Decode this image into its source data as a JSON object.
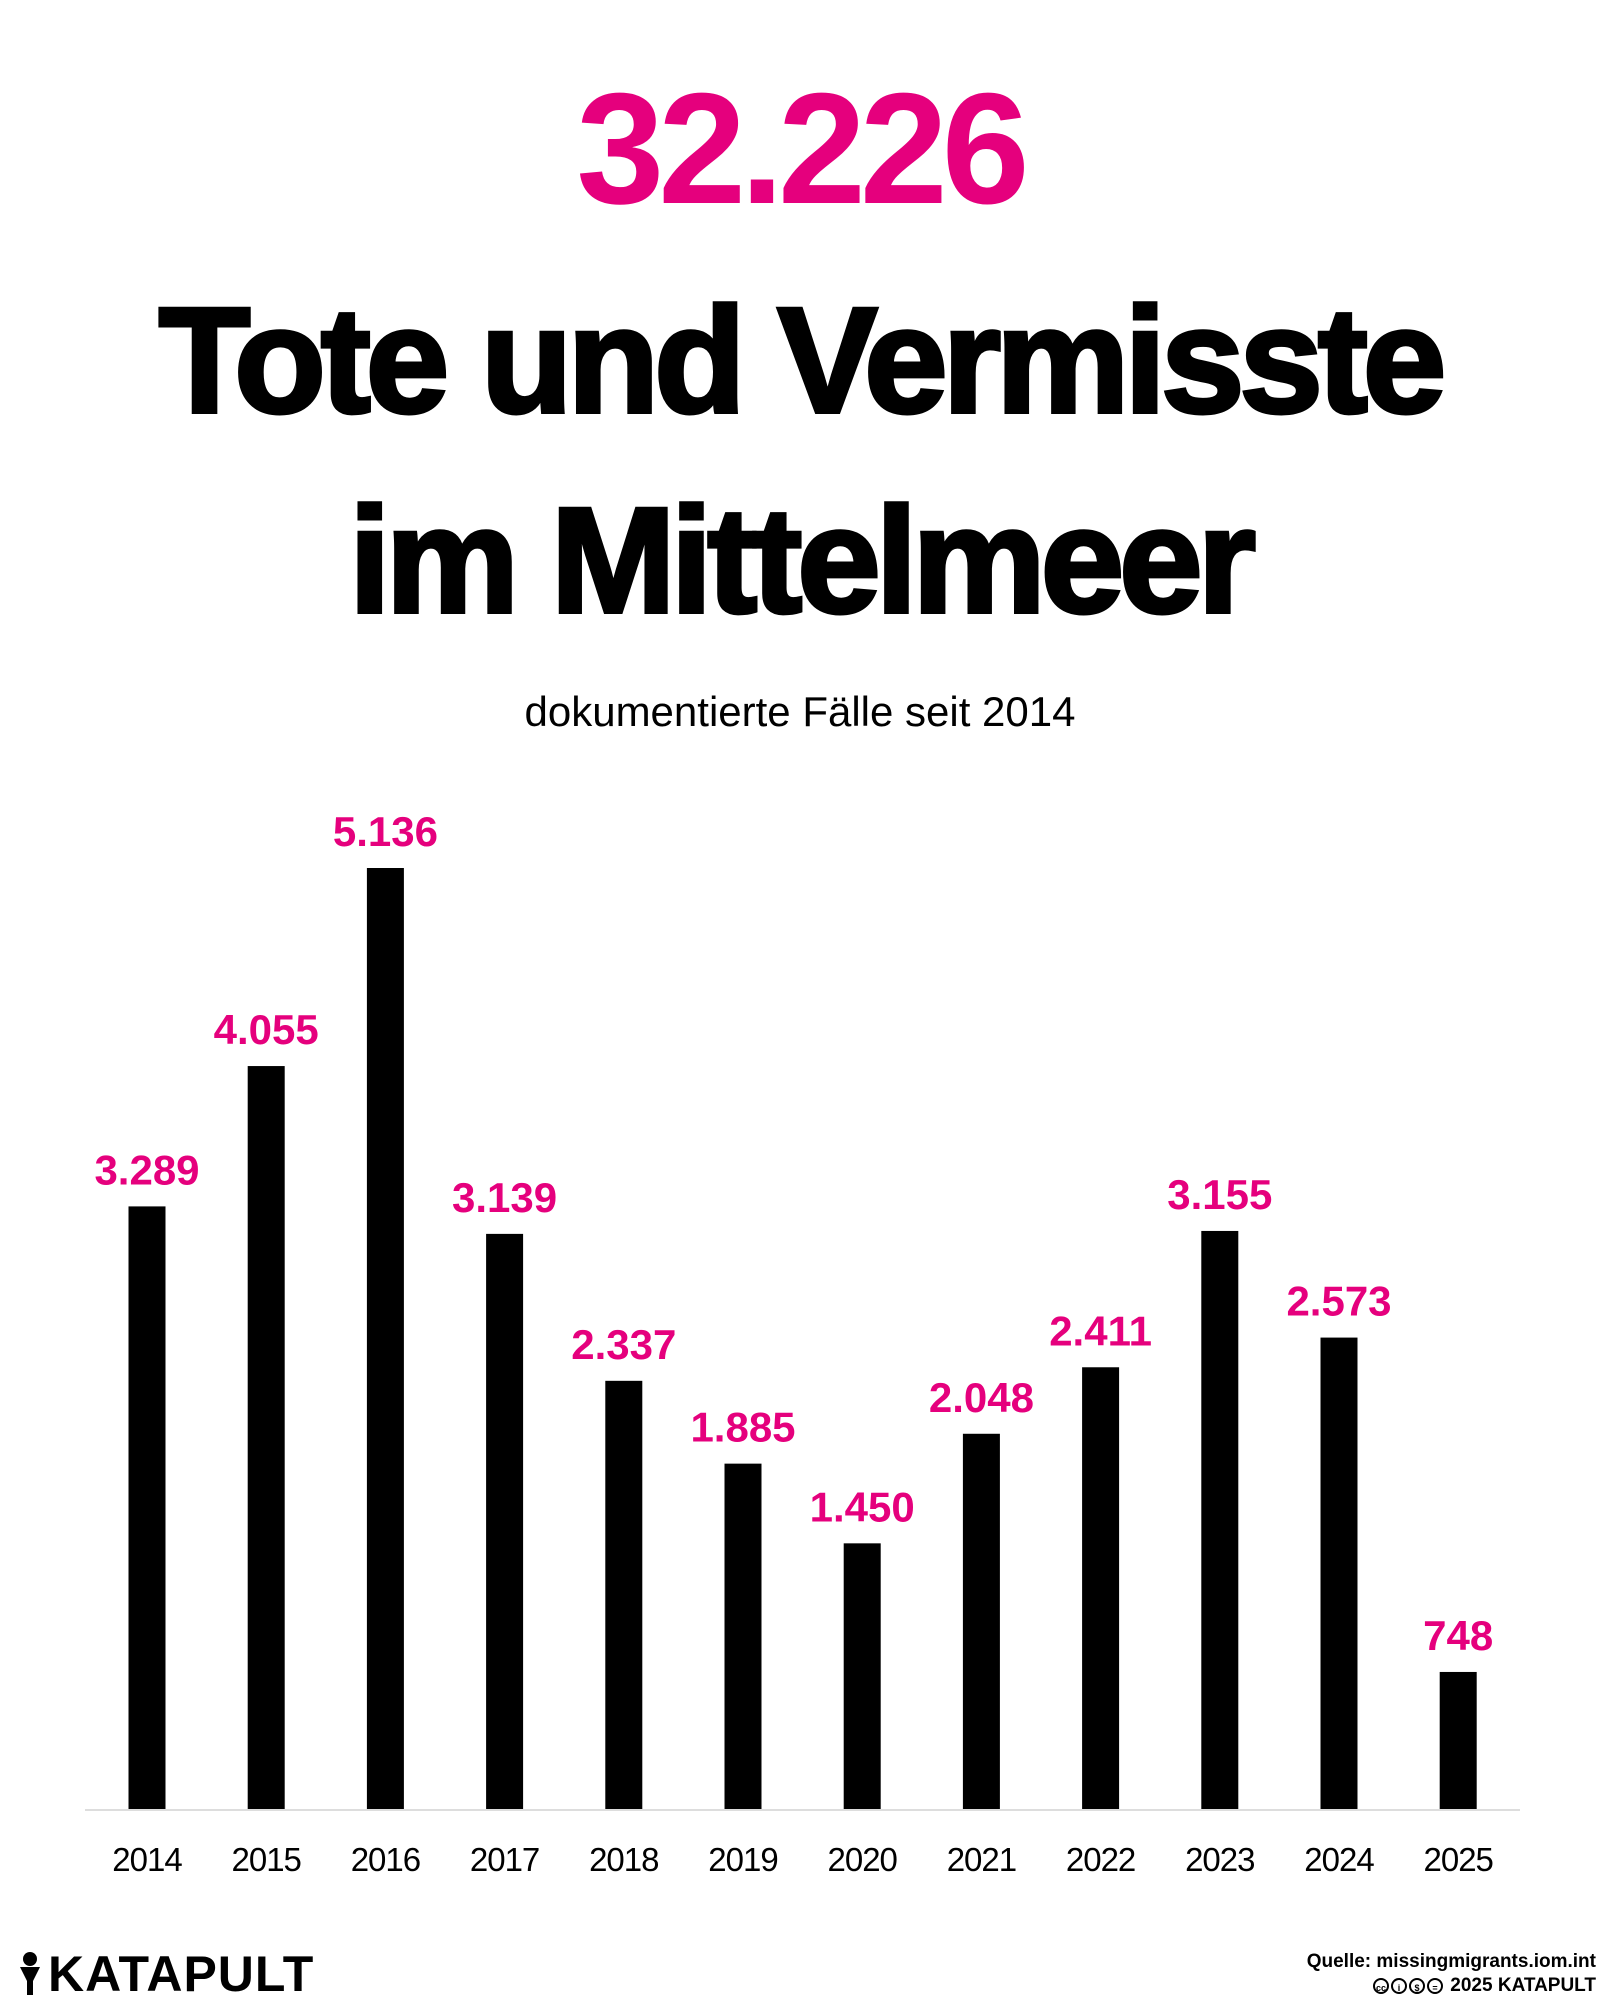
{
  "colors": {
    "accent": "#E5007D",
    "bar": "#000000",
    "axis": "#dddddd"
  },
  "header": {
    "total": "32.226",
    "title_line1": "Tote und Vermisste",
    "title_line2": "im Mittelmeer",
    "subtitle": "dokumentierte Fälle seit 2014"
  },
  "chart_data": {
    "type": "bar",
    "title": "Tote und Vermisste im Mittelmeer",
    "subtitle": "dokumentierte Fälle seit 2014",
    "categories": [
      "2014",
      "2015",
      "2016",
      "2017",
      "2018",
      "2019",
      "2020",
      "2021",
      "2022",
      "2023",
      "2024",
      "2025"
    ],
    "values": [
      3289,
      4055,
      5136,
      3139,
      2337,
      1885,
      1450,
      2048,
      2411,
      3155,
      2573,
      748
    ],
    "labels": [
      "3.289",
      "4.055",
      "5.136",
      "3.139",
      "2.337",
      "1.885",
      "1.450",
      "2.048",
      "2.411",
      "3.155",
      "2.573",
      "748"
    ],
    "xlabel": "",
    "ylabel": "",
    "ylim": [
      0,
      5136
    ],
    "grid": false
  },
  "footer": {
    "brand": "KATAPULT",
    "source": "Quelle: missingmigrants.iom.int",
    "license_icons": [
      "cc",
      "by",
      "nc",
      "nd"
    ],
    "copyright": "2025 KATAPULT"
  }
}
